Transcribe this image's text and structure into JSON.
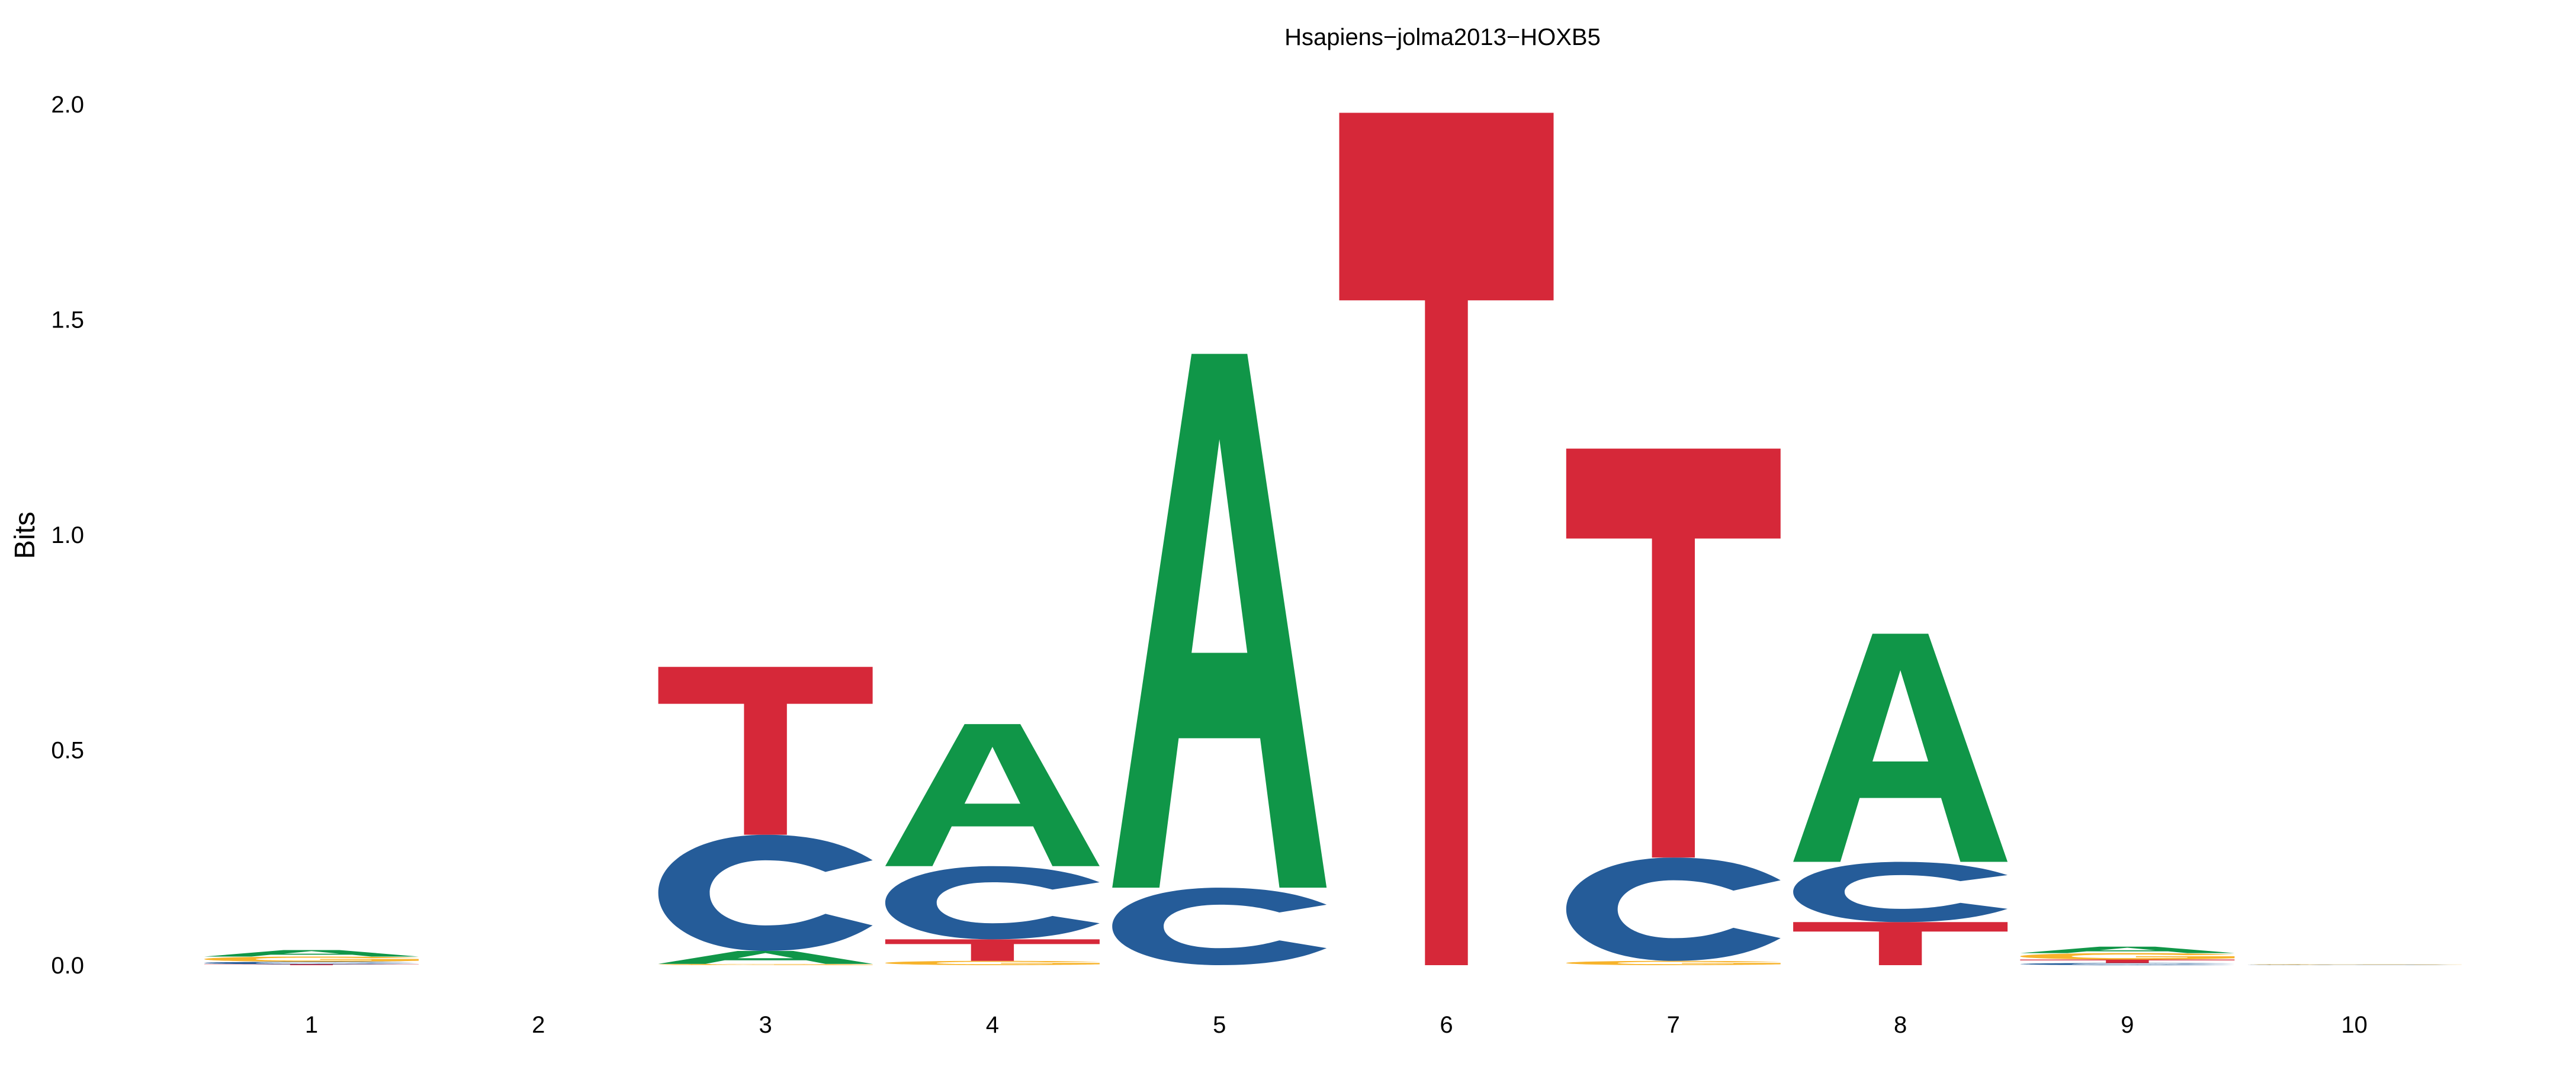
{
  "chart_data": {
    "type": "sequence-logo",
    "title": "Hsapiens−jolma2013−HOXB5",
    "ylabel": "Bits",
    "xlabel": "",
    "ylim": [
      0,
      2
    ],
    "y_ticks": [
      "0.0",
      "0.5",
      "1.0",
      "1.5",
      "2.0"
    ],
    "x_ticks": [
      "1",
      "2",
      "3",
      "4",
      "5",
      "6",
      "7",
      "8",
      "9",
      "10"
    ],
    "grid": false,
    "colors": {
      "A": "#109648",
      "C": "#255C99",
      "G": "#F7B32B",
      "T": "#D62839"
    },
    "positions": [
      {
        "position": 1,
        "letters": [
          [
            "T",
            0.002
          ],
          [
            "C",
            0.006
          ],
          [
            "G",
            0.012
          ],
          [
            "A",
            0.015
          ]
        ]
      },
      {
        "position": 2,
        "letters": []
      },
      {
        "position": 3,
        "letters": [
          [
            "G",
            0.003
          ],
          [
            "A",
            0.03
          ],
          [
            "C",
            0.27
          ],
          [
            "T",
            0.39
          ]
        ]
      },
      {
        "position": 4,
        "letters": [
          [
            "G",
            0.01
          ],
          [
            "T",
            0.05
          ],
          [
            "C",
            0.17
          ],
          [
            "A",
            0.33
          ]
        ]
      },
      {
        "position": 5,
        "letters": [
          [
            "C",
            0.18
          ],
          [
            "A",
            1.24
          ]
        ]
      },
      {
        "position": 6,
        "letters": [
          [
            "T",
            1.98
          ]
        ]
      },
      {
        "position": 7,
        "letters": [
          [
            "G",
            0.01
          ],
          [
            "C",
            0.24
          ],
          [
            "T",
            0.95
          ]
        ]
      },
      {
        "position": 8,
        "letters": [
          [
            "T",
            0.1
          ],
          [
            "C",
            0.14
          ],
          [
            "A",
            0.53
          ]
        ]
      },
      {
        "position": 9,
        "letters": [
          [
            "C",
            0.005
          ],
          [
            "T",
            0.008
          ],
          [
            "G",
            0.015
          ],
          [
            "A",
            0.015
          ]
        ]
      },
      {
        "position": 10,
        "letters": [
          [
            "C",
            0.001
          ],
          [
            "G",
            0.001
          ]
        ]
      }
    ]
  }
}
